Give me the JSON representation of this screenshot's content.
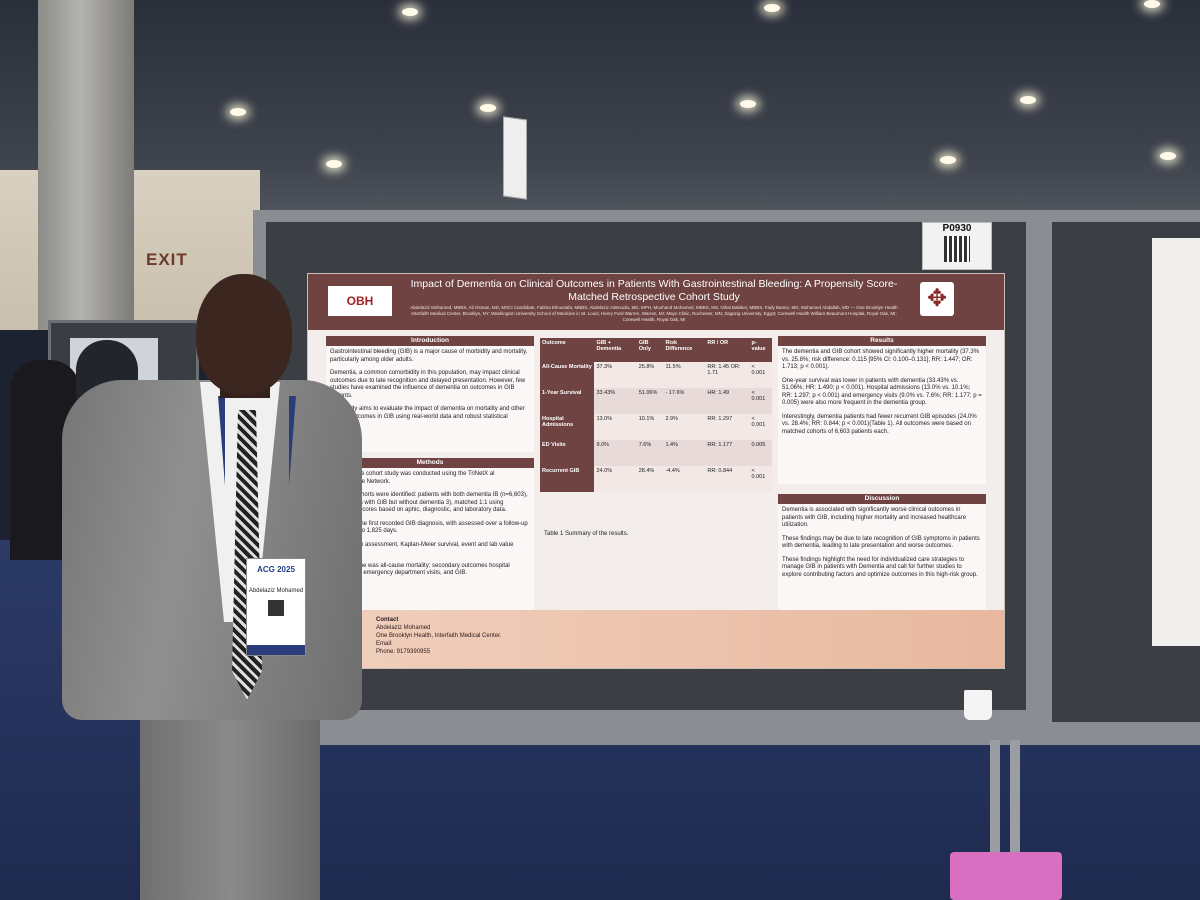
{
  "scene": {
    "exit_sign": "EXIT",
    "poster_number": "P0930"
  },
  "poster": {
    "logo_text": "OBH",
    "title": "Impact of Dementia on Clinical Outcomes in Patients With Gastrointestinal Bleeding: A Propensity Score-Matched Retrospective Cohort Study",
    "authors": "Abdelaziz Mohamed, MBBS, Ali Osman, MD, MSCI Candidate, Fatima Elmustafa, MBBS, Abdelaziz Adenuolu, MD, MPH, Mouhand Mohamed, MBBS, MS, Nihal Babiker, MBBS, Fady Banno, MD, Mohamed Abdallah, MD — One Brooklyn Health Interfaith Medical Center, Brooklyn, NY; Washington University School of Medicine in St. Louis; Henry Ford Warren, Warren, MI; Mayo Clinic, Rochester, MN; Zagazig University, Egypt; Corewell Health William Beaumont Hospital, Royal Oak, MI; Corewell Health, Royal Oak, MI",
    "introduction": {
      "heading": "Introduction",
      "paragraphs": [
        "Gastrointestinal bleeding (GIB) is a major cause of morbidity and mortality, particularly among older adults.",
        "Dementia, a common comorbidity in this population, may impact clinical outcomes due to late recognition and delayed presentation. However, few studies have examined the influence of dementia on outcomes in GIB patients.",
        "This study aims to evaluate the impact of dementia on mortality and other clinical outcomes in GIB using real-world data and robust statistical matching."
      ]
    },
    "methods": {
      "heading": "Methods",
      "paragraphs": [
        "retrospective cohort study was conducted using the TriNetX al Collaborative Network.",
        "matched cohorts were identified: patients with both dementia IB (n=6,603), and patients with GIB but without dementia 3), matched 1:1 using propensity scores based on aphic, diagnostic, and laboratory data.",
        "event was the first recorded GIB diagnosis, with assessed over a follow-up period of 1 to 1,825 days.",
        "included risk assessment, Kaplan-Meier survival, event and lab value distribution.",
        "dary outcome was all-cause mortality; secondary outcomes hospital admissions, emergency department visits, and GIB."
      ]
    },
    "table": {
      "headers": [
        "Outcome",
        "GIB + Dementia",
        "GIB Only",
        "Risk Difference",
        "RR / OR",
        "p-value"
      ],
      "rows": [
        [
          "All-Cause Mortality",
          "37.3%",
          "25.8%",
          "11.5%",
          "RR: 1.45 OR: 1.71",
          "< 0.001"
        ],
        [
          "1-Year Survival",
          "33.43%",
          "51.06%",
          "- 17.6%",
          "HR: 1.49",
          "< 0.001"
        ],
        [
          "Hospital Admissions",
          "13.0%",
          "10.1%",
          "2.9%",
          "RR: 1.297",
          "< 0.001"
        ],
        [
          "ED Visits",
          "9.0%",
          "7.6%",
          "1.4%",
          "RR: 1.177",
          "0.005"
        ],
        [
          "Recurrent GIB",
          "24.0%",
          "28.4%",
          "-4.4%",
          "RR: 0.844",
          "< 0.001"
        ]
      ],
      "caption": "Table 1  Summary of the results."
    },
    "results": {
      "heading": "Results",
      "paragraphs": [
        "The dementia and GIB cohort showed significantly higher mortality (37.3% vs. 25.8%; risk difference: 0.115 [95% CI: 0.100–0.131]; RR: 1.447; OR: 1.713; p < 0.001).",
        "One-year survival was lower in patients with dementia (33.43% vs. 51.06%; HR: 1.490; p < 0.001). Hospital admissions (13.0% vs. 10.1%; RR: 1.297; p < 0.001) and emergency visits (9.0% vs. 7.6%; RR: 1.177; p = 0.005) were also more frequent in the dementia group.",
        "Interestingly, dementia patients had fewer recurrent GIB episodes (24.0% vs. 28.4%; RR: 0.844; p < 0.001)(Table 1). All outcomes were based on matched cohorts of 6,603 patients each."
      ]
    },
    "discussion": {
      "heading": "Discussion",
      "paragraphs": [
        "Dementia is associated with significantly worse clinical outcomes in patients with GIB, including higher mortality and increased healthcare utilization.",
        "These findings may be due to late recognition of GIB symptoms in patients with dementia, leading to late presentation and worse outcomes.",
        "These findings highlight the need for individualized care strategies to manage GIB in patients with Dementia and call for further studies to explore contributing factors and optimize outcomes in this high-risk group."
      ]
    },
    "contact": {
      "label": "Contact",
      "name": "Abdelaziz Mohamed",
      "org": "One Brooklyn Health, Interfaith Medical Center.",
      "email_label": "Email:",
      "phone": "Phone: 9179390955"
    }
  },
  "badge": {
    "event": "ACG 2025",
    "name": "Abdelaziz Mohamed"
  },
  "colors": {
    "poster_accent": "#6e4341",
    "board": "#3b3f44",
    "carpet": "#24315a"
  }
}
